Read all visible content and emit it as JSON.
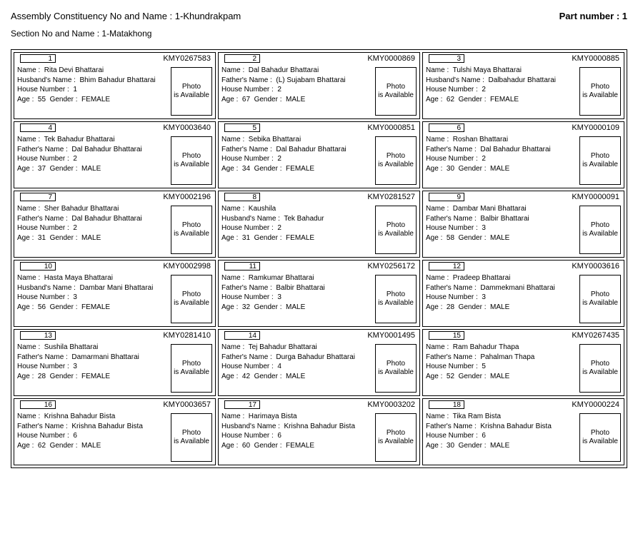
{
  "header": {
    "assembly_label": "Assembly Constituency No and Name : 1-Khundrakpam",
    "part_label": "Part number : 1",
    "section_label": "Section No and Name : 1-Matakhong"
  },
  "labels": {
    "name": "Name :",
    "husband": "Husband's Name :",
    "father": "Father's Name :",
    "house": "House Number :",
    "age": "Age :",
    "gender": "Gender :",
    "photo": "Photo is Available"
  },
  "voters": [
    {
      "serial": "1",
      "epic": "KMY0267583",
      "name": "Rita Devi Bhattarai",
      "relation_type": "husband",
      "relation_name": "Bhim Bahadur Bhattarai",
      "house": "1",
      "age": "55",
      "gender": "FEMALE"
    },
    {
      "serial": "2",
      "epic": "KMY0000869",
      "name": "Dal Bahadur Bhattarai",
      "relation_type": "father",
      "relation_name": "(L) Sujabam Bhattarai",
      "house": "2",
      "age": "67",
      "gender": "MALE"
    },
    {
      "serial": "3",
      "epic": "KMY0000885",
      "name": "Tulshi Maya Bhattarai",
      "relation_type": "husband",
      "relation_name": "Dalbahadur Bhattarai",
      "house": "2",
      "age": "62",
      "gender": "FEMALE"
    },
    {
      "serial": "4",
      "epic": "KMY0003640",
      "name": "Tek Bahadur Bhattarai",
      "relation_type": "father",
      "relation_name": "Dal Bahadur Bhattarai",
      "house": "2",
      "age": "37",
      "gender": "MALE"
    },
    {
      "serial": "5",
      "epic": "KMY0000851",
      "name": "Sebika Bhattarai",
      "relation_type": "father",
      "relation_name": "Dal Bahadur Bhattarai",
      "house": "2",
      "age": "34",
      "gender": "FEMALE"
    },
    {
      "serial": "6",
      "epic": "KMY0000109",
      "name": "Roshan Bhattarai",
      "relation_type": "father",
      "relation_name": "Dal Bahadur Bhattarai",
      "house": "2",
      "age": "30",
      "gender": "MALE"
    },
    {
      "serial": "7",
      "epic": "KMY0002196",
      "name": "Sher Bahadur Bhattarai",
      "relation_type": "father",
      "relation_name": "Dal Bahadur Bhattarai",
      "house": "2",
      "age": "31",
      "gender": "MALE"
    },
    {
      "serial": "8",
      "epic": "KMY0281527",
      "name": "Kaushila",
      "relation_type": "husband",
      "relation_name": "Tek Bahadur",
      "house": "2",
      "age": "31",
      "gender": "FEMALE"
    },
    {
      "serial": "9",
      "epic": "KMY0000091",
      "name": "Dambar Mani Bhattarai",
      "relation_type": "father",
      "relation_name": "Balbir Bhattarai",
      "house": "3",
      "age": "58",
      "gender": "MALE"
    },
    {
      "serial": "10",
      "epic": "KMY0002998",
      "name": "Hasta Maya Bhattarai",
      "relation_type": "husband",
      "relation_name": "Dambar Mani Bhattarai",
      "house": "3",
      "age": "56",
      "gender": "FEMALE"
    },
    {
      "serial": "11",
      "epic": "KMY0256172",
      "name": "Ramkumar Bhattarai",
      "relation_type": "father",
      "relation_name": "Balbir Bhattarai",
      "house": "3",
      "age": "32",
      "gender": "MALE"
    },
    {
      "serial": "12",
      "epic": "KMY0003616",
      "name": "Pradeep Bhattarai",
      "relation_type": "father",
      "relation_name": "Dammekmani Bhattarai",
      "house": "3",
      "age": "28",
      "gender": "MALE"
    },
    {
      "serial": "13",
      "epic": "KMY0281410",
      "name": "Sushila Bhattarai",
      "relation_type": "father",
      "relation_name": "Damarmani Bhattarai",
      "house": "3",
      "age": "28",
      "gender": "FEMALE"
    },
    {
      "serial": "14",
      "epic": "KMY0001495",
      "name": "Tej Bahadur Bhattarai",
      "relation_type": "father",
      "relation_name": "Durga Bahadur Bhattarai",
      "house": "4",
      "age": "42",
      "gender": "MALE"
    },
    {
      "serial": "15",
      "epic": "KMY0267435",
      "name": "Ram Bahadur Thapa",
      "relation_type": "father",
      "relation_name": "Pahalman Thapa",
      "house": "5",
      "age": "52",
      "gender": "MALE"
    },
    {
      "serial": "16",
      "epic": "KMY0003657",
      "name": "Krishna Bahadur Bista",
      "relation_type": "father",
      "relation_name": "Krishna Bahadur Bista",
      "house": "6",
      "age": "62",
      "gender": "MALE"
    },
    {
      "serial": "17",
      "epic": "KMY0003202",
      "name": "Harimaya Bista",
      "relation_type": "husband",
      "relation_name": "Krishna Bahadur Bista",
      "house": "6",
      "age": "60",
      "gender": "FEMALE"
    },
    {
      "serial": "18",
      "epic": "KMY0000224",
      "name": "Tika Ram Bista",
      "relation_type": "father",
      "relation_name": "Krishna Bahadur Bista",
      "house": "6",
      "age": "30",
      "gender": "MALE"
    }
  ]
}
